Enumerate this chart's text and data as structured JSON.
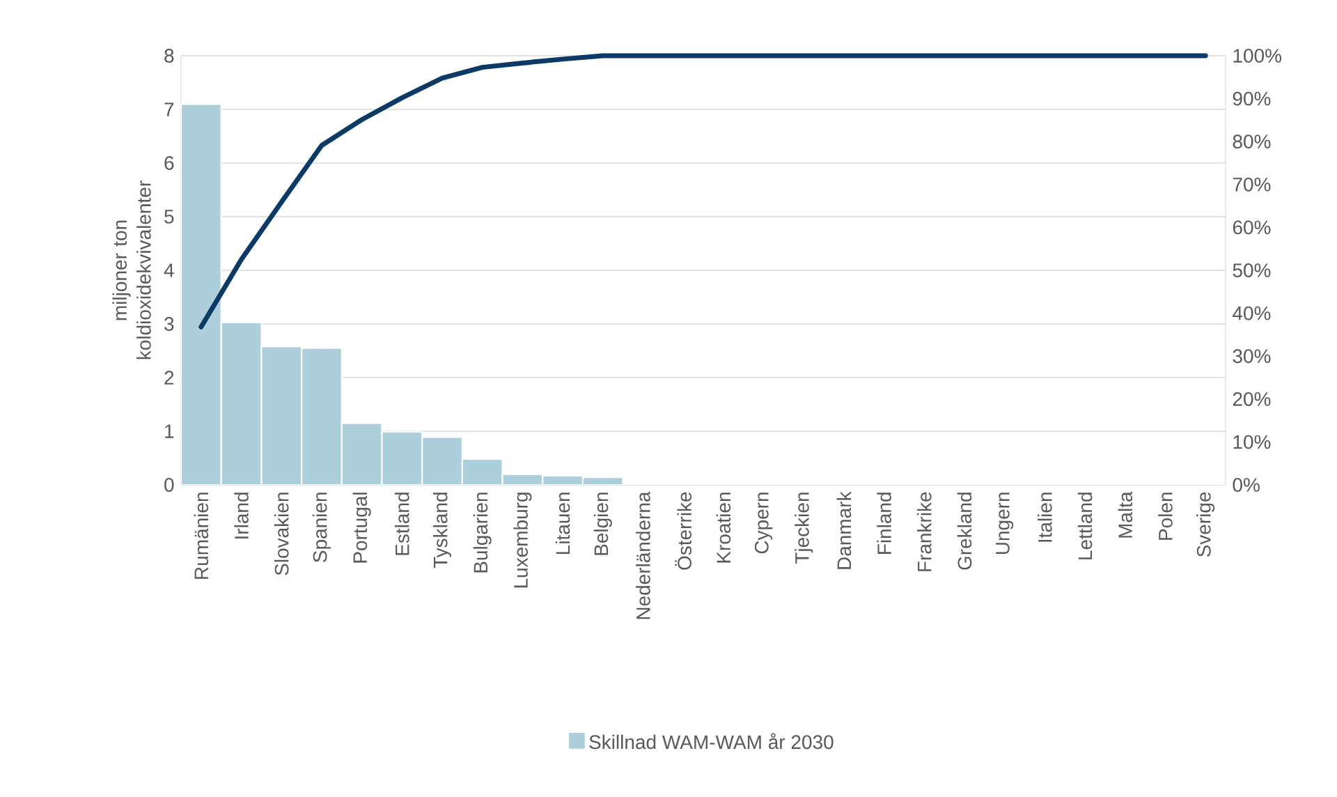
{
  "chart_data": {
    "type": "bar",
    "ylabel": "miljoner ton koldioxidekvivalenter",
    "categories": [
      "Rumänien",
      "Irland",
      "Slovakien",
      "Spanien",
      "Portugal",
      "Estland",
      "Tyskland",
      "Bulgarien",
      "Luxemburg",
      "Litauen",
      "Belgien",
      "Nederländerna",
      "Österrike",
      "Kroatien",
      "Cypern",
      "Tjeckien",
      "Danmark",
      "Finland",
      "Frankrike",
      "Grekland",
      "Ungern",
      "Italien",
      "Lettland",
      "Malta",
      "Polen",
      "Sverige"
    ],
    "series": [
      {
        "name": "Skillnad WAM-WAM år 2030",
        "color": "#adcfdc",
        "values": [
          7.1,
          3.03,
          2.58,
          2.55,
          1.15,
          0.99,
          0.89,
          0.48,
          0.2,
          0.17,
          0.14,
          0,
          0,
          0,
          0,
          0,
          0,
          0,
          0,
          0,
          0,
          0,
          0,
          0,
          0,
          0
        ]
      },
      {
        "type": "line",
        "axis": "y2",
        "color": "#0b3a66",
        "values": [
          36.8,
          52.5,
          65.9,
          79.1,
          85.1,
          90.2,
          94.8,
          97.3,
          98.3,
          99.2,
          100,
          100,
          100,
          100,
          100,
          100,
          100,
          100,
          100,
          100,
          100,
          100,
          100,
          100,
          100,
          100
        ]
      }
    ],
    "ylim": [
      0,
      8
    ],
    "yticks": [
      0,
      1,
      2,
      3,
      4,
      5,
      6,
      7,
      8
    ],
    "y2lim": [
      0,
      100
    ],
    "y2ticks": [
      {
        "value": 0,
        "label": "0%"
      },
      {
        "value": 10,
        "label": "10%"
      },
      {
        "value": 20,
        "label": "20%"
      },
      {
        "value": 30,
        "label": "30%"
      },
      {
        "value": 40,
        "label": "40%"
      },
      {
        "value": 50,
        "label": "50%"
      },
      {
        "value": 60,
        "label": "60%"
      },
      {
        "value": 70,
        "label": "70%"
      },
      {
        "value": 80,
        "label": "80%"
      },
      {
        "value": 90,
        "label": "90%"
      },
      {
        "value": 100,
        "label": "100%"
      }
    ],
    "grid": "y",
    "legend": "bottom",
    "marker": "none"
  }
}
